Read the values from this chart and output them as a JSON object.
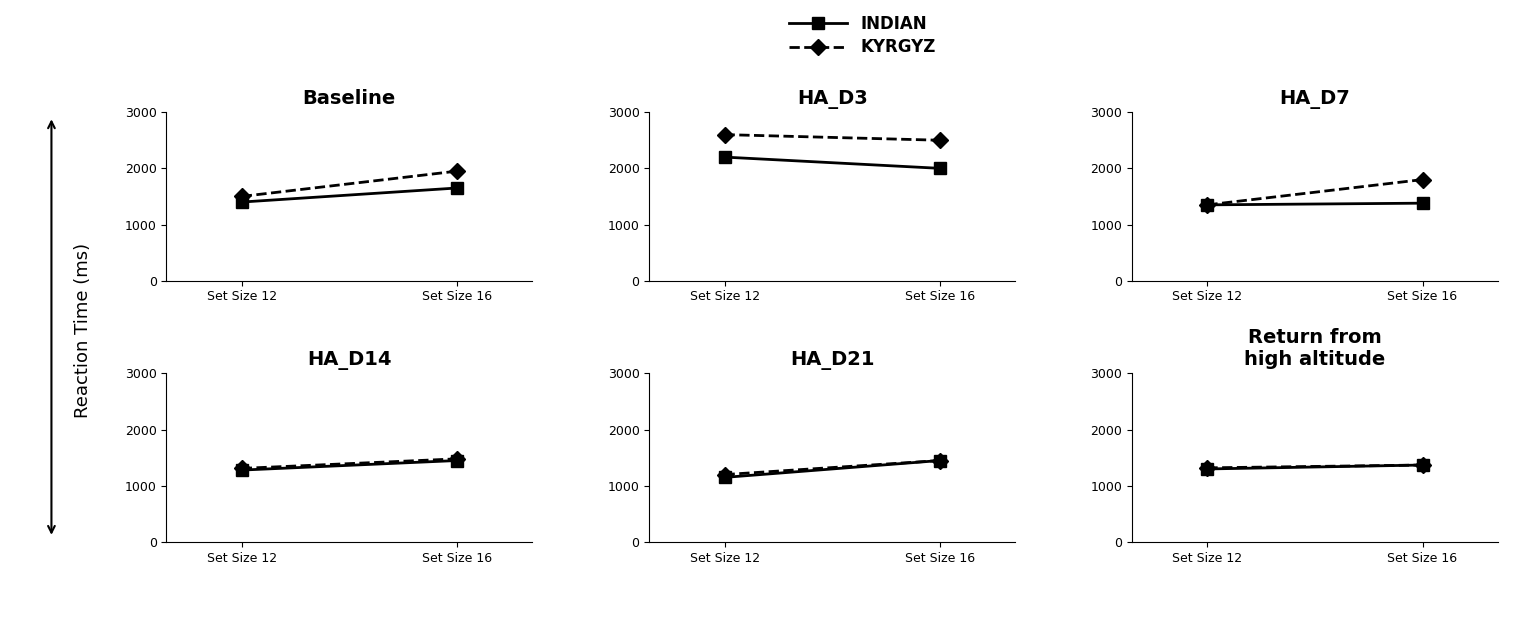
{
  "subplots": [
    {
      "title": "Baseline",
      "indian": [
        1400,
        1650
      ],
      "kyrgyz": [
        1500,
        1950
      ]
    },
    {
      "title": "HA_D3",
      "indian": [
        2200,
        2000
      ],
      "kyrgyz": [
        2600,
        2500
      ]
    },
    {
      "title": "HA_D7",
      "indian": [
        1350,
        1380
      ],
      "kyrgyz": [
        1350,
        1800
      ]
    },
    {
      "title": "HA_D14",
      "indian": [
        1280,
        1450
      ],
      "kyrgyz": [
        1310,
        1480
      ]
    },
    {
      "title": "HA_D21",
      "indian": [
        1150,
        1450
      ],
      "kyrgyz": [
        1200,
        1450
      ]
    },
    {
      "title": "Return from\nhigh altitude",
      "indian": [
        1300,
        1370
      ],
      "kyrgyz": [
        1320,
        1370
      ]
    }
  ],
  "x_labels": [
    "Set Size 12",
    "Set Size 16"
  ],
  "x_values": [
    0,
    1
  ],
  "ylim": [
    0,
    3000
  ],
  "yticks": [
    0,
    1000,
    2000,
    3000
  ],
  "ylabel": "Reaction Time (ms)",
  "line_color": "black",
  "indian_linestyle": "solid",
  "kyrgyz_linestyle": "dashed",
  "markersize": 8,
  "title_fontsize": 14,
  "tick_fontsize": 9,
  "ylabel_fontsize": 13,
  "legend_fontsize": 12,
  "background_color": "white"
}
